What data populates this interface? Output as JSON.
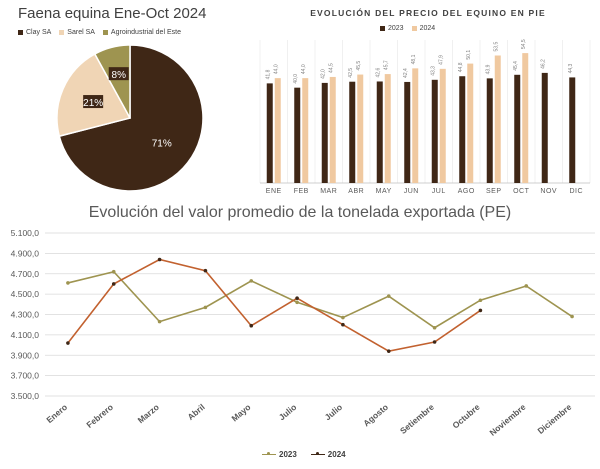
{
  "chart_data": [
    {
      "type": "pie",
      "title": "Faena equina Ene-Oct 2024",
      "categories": [
        "Clay SA",
        "Sarel SA",
        "Agroindustrial del Este"
      ],
      "values": [
        71,
        21,
        8
      ],
      "labels": [
        "71%",
        "21%",
        "8%"
      ],
      "colors": [
        "#3f2716",
        "#f0d5b5",
        "#9e9450"
      ],
      "legend_position": "top"
    },
    {
      "type": "bar",
      "title": "EVOLUCIÓN DEL PRECIO DEL EQUINO EN PIE",
      "categories": [
        "ENE",
        "FEB",
        "MAR",
        "ABR",
        "MAY",
        "JUN",
        "JUL",
        "AGO",
        "SEP",
        "OCT",
        "NOV",
        "DIC"
      ],
      "series": [
        {
          "name": "2023",
          "color": "#3f2716",
          "values": [
            41.8,
            40.0,
            42.0,
            42.5,
            42.6,
            42.4,
            43.3,
            44.8,
            43.9,
            45.4,
            46.2,
            44.3
          ],
          "labels": [
            "41,8",
            "40,0",
            "42,0",
            "42,5",
            "42,6",
            "42,4",
            "43,3",
            "44,8",
            "43,9",
            "45,4",
            "46,2",
            "44,3"
          ]
        },
        {
          "name": "2024",
          "color": "#f0c9a0",
          "values": [
            44.0,
            44.0,
            44.5,
            45.5,
            45.7,
            48.1,
            47.9,
            50.1,
            53.5,
            54.5,
            null,
            null
          ],
          "labels": [
            "44,0",
            "44,0",
            "44,5",
            "45,5",
            "45,7",
            "48,1",
            "47,9",
            "50,1",
            "53,5",
            "54,5",
            "",
            ""
          ]
        }
      ],
      "ylim": [
        0,
        60
      ],
      "legend_position": "top"
    },
    {
      "type": "line",
      "title": "Evolución del valor promedio de la tonelada exportada (PE)",
      "categories": [
        "Enero",
        "Febrero",
        "Marzo",
        "Abril",
        "Mayo",
        "Julio",
        "Julio",
        "Agosto",
        "Setiembre",
        "Octubre",
        "Noviembre",
        "Diciembre"
      ],
      "yticks": [
        "3.500,0",
        "3.700,0",
        "3.900,0",
        "4.100,0",
        "4.300,0",
        "4.500,0",
        "4.700,0",
        "4.900,0",
        "5.100,0"
      ],
      "ytick_values": [
        3500,
        3700,
        3900,
        4100,
        4300,
        4500,
        4700,
        4900,
        5100
      ],
      "ylim": [
        3500,
        5100
      ],
      "series": [
        {
          "name": "2023",
          "color": "#9e9450",
          "values": [
            4610,
            4720,
            4230,
            4370,
            4630,
            4420,
            4270,
            4480,
            4170,
            4440,
            4580,
            4280
          ]
        },
        {
          "name": "2024",
          "color": "#c2612f",
          "values": [
            4020,
            4600,
            4840,
            4730,
            4190,
            4460,
            4200,
            3940,
            4030,
            4340,
            null,
            null
          ]
        }
      ],
      "legend_position": "bottom",
      "grid": true
    }
  ]
}
